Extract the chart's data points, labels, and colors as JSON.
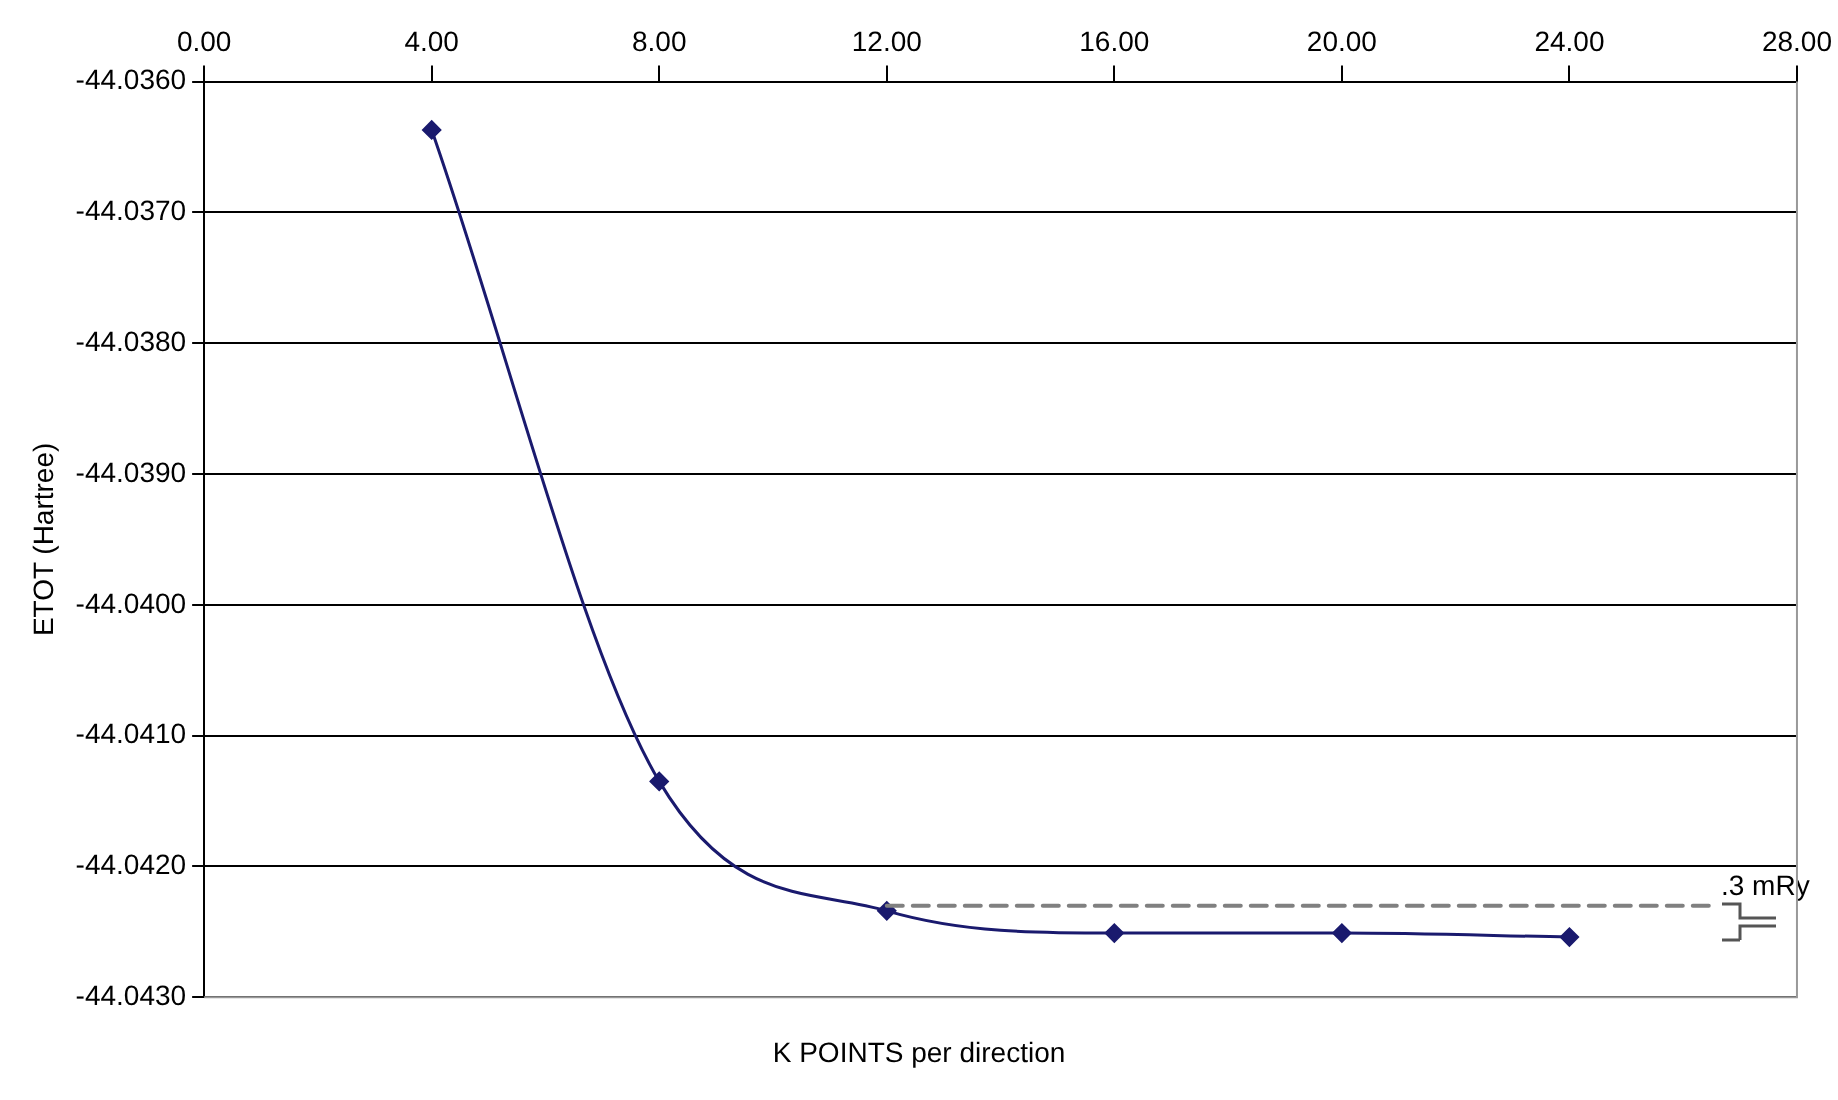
{
  "chart_data": {
    "type": "line",
    "xlabel": "K POINTS per direction",
    "ylabel": "ETOT (Hartree)",
    "x": [
      4,
      8,
      12,
      16,
      20,
      24
    ],
    "series": [
      {
        "color": "#1a1a6e",
        "values": [
          -44.03637,
          -44.04135,
          -44.04234,
          -44.04251,
          -44.04251,
          -44.04254
        ]
      }
    ],
    "xlim": [
      0,
      28
    ],
    "xticks": [
      {
        "value": 0,
        "label": "0.00"
      },
      {
        "value": 4,
        "label": "4.00"
      },
      {
        "value": 8,
        "label": "8.00"
      },
      {
        "value": 12,
        "label": "12.00"
      },
      {
        "value": 16,
        "label": "16.00"
      },
      {
        "value": 20,
        "label": "20.00"
      },
      {
        "value": 24,
        "label": "24.00"
      },
      {
        "value": 28,
        "label": "28.00"
      }
    ],
    "ylim": [
      -44.043,
      -44.036
    ],
    "yticks": [
      {
        "value": -44.043,
        "label": "-44.0430"
      },
      {
        "value": -44.042,
        "label": "-44.0420"
      },
      {
        "value": -44.041,
        "label": "-44.0410"
      },
      {
        "value": -44.04,
        "label": "-44.0400"
      },
      {
        "value": -44.039,
        "label": "-44.0390"
      },
      {
        "value": -44.038,
        "label": "-44.0380"
      },
      {
        "value": -44.037,
        "label": "-44.0370"
      },
      {
        "value": -44.036,
        "label": "-44.0360"
      }
    ],
    "ref_lines": [
      {
        "axis": "y",
        "value": -44.0423,
        "label": ".3 mRy",
        "color": "#808080",
        "line_style": "dashed"
      }
    ],
    "grid": "y",
    "legend": false,
    "marker": "diamond",
    "line_style": "solid"
  }
}
